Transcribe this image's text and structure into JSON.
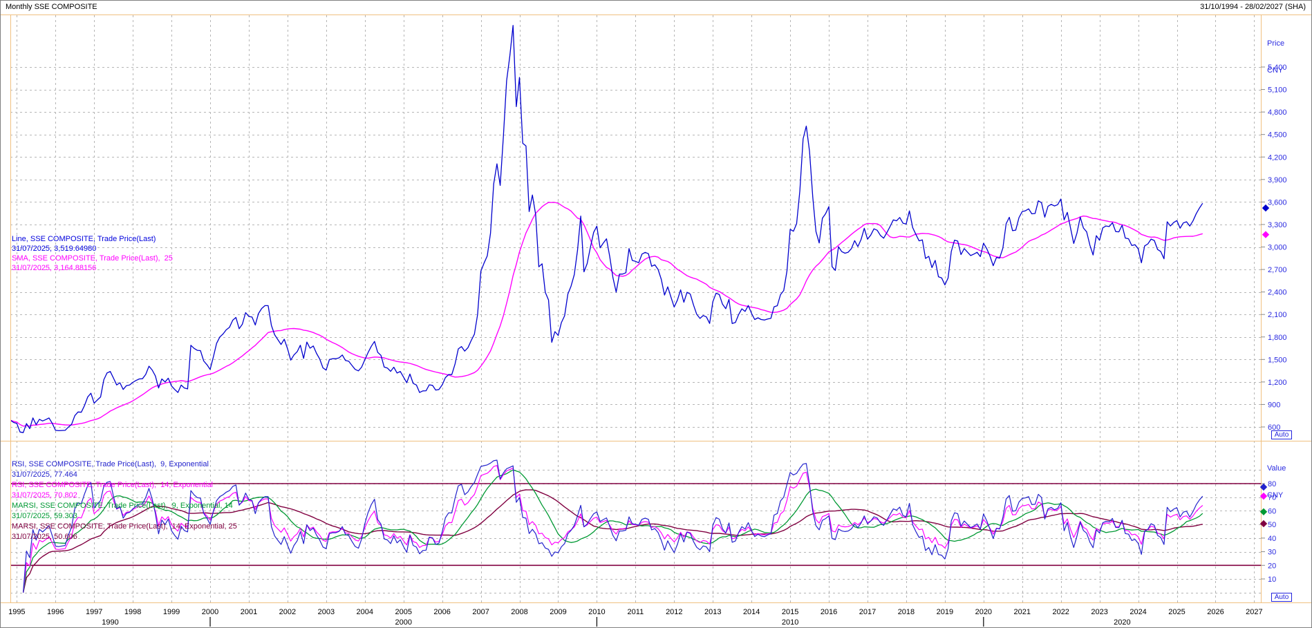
{
  "header": {
    "title": "Monthly SSE COMPOSITE",
    "date_range": "31/10/1994 - 28/02/2027 (SHA)"
  },
  "price_pane": {
    "axis_title_line1": "Price",
    "axis_title_line2": "CNY",
    "auto_label": "Auto",
    "ticks": [
      5400,
      5100,
      4800,
      4500,
      4200,
      3900,
      3600,
      3300,
      3000,
      2700,
      2400,
      2100,
      1800,
      1500,
      1200,
      900,
      600
    ],
    "legend": [
      {
        "label": "Line, SSE COMPOSITE, Trade Price(Last)",
        "value_line": "31/07/2025, 3,519.64980",
        "color": "#0000dd"
      },
      {
        "label": "SMA, SSE COMPOSITE, Trade Price(Last),  25",
        "value_line": "31/07/2025, 3,164.88156",
        "color": "#ff00ff"
      }
    ],
    "axis_markers": [
      {
        "value": 3519.6498,
        "color": "#0000cc"
      },
      {
        "value": 3164.88156,
        "color": "#ff00ff"
      }
    ]
  },
  "value_pane": {
    "axis_title_line1": "Value",
    "axis_title_line2": "CNY",
    "auto_label": "Auto",
    "ticks": [
      80,
      70,
      60,
      50,
      40,
      30,
      20,
      10
    ],
    "band_lines": [
      20,
      80
    ],
    "band_color": "#800040",
    "legend": [
      {
        "label": "RSI, SSE COMPOSITE, Trade Price(Last),  9, Exponential",
        "value_line": "31/07/2025, 77.464",
        "color": "#2222cc"
      },
      {
        "label": "RSI, SSE COMPOSITE, Trade Price(Last),  14, Exponential",
        "value_line": "31/07/2025, 70.802",
        "color": "#ff00ff"
      },
      {
        "label": "MARSI, SSE COMPOSITE, Trade Price(Last),  9, Exponential, 14",
        "value_line": "31/07/2025, 59.303",
        "color": "#009933"
      },
      {
        "label": "MARSI, SSE COMPOSITE, Trade Price(Last),  14, Exponential, 25",
        "value_line": "31/07/2025, 50.606",
        "color": "#800040"
      }
    ],
    "axis_markers": [
      {
        "value": 77.464,
        "color": "#2222cc"
      },
      {
        "value": 70.802,
        "color": "#ff00ff"
      },
      {
        "value": 59.303,
        "color": "#009933"
      },
      {
        "value": 50.606,
        "color": "#800040"
      }
    ]
  },
  "x_axis": {
    "years": [
      1995,
      1996,
      1997,
      1998,
      1999,
      2000,
      2001,
      2002,
      2003,
      2004,
      2005,
      2006,
      2007,
      2008,
      2009,
      2010,
      2011,
      2012,
      2013,
      2014,
      2015,
      2016,
      2017,
      2018,
      2019,
      2020,
      2021,
      2022,
      2023,
      2024,
      2025,
      2026,
      2027
    ],
    "decade_ticks": [
      2000,
      2010,
      2020
    ],
    "decade_labels": [
      "1990",
      "2000",
      "2010",
      "2020"
    ]
  },
  "chart_data": {
    "type": "line",
    "title": "Monthly SSE COMPOSITE",
    "x_range_dates": [
      "31/10/1994",
      "28/02/2027"
    ],
    "price_axis": {
      "label": "Price CNY",
      "ticks_min": 600,
      "ticks_max": 5400,
      "tick_step": 300
    },
    "value_axis": {
      "label": "Value CNY",
      "ticks_min": 10,
      "ticks_max": 80,
      "tick_step": 10,
      "reference_lines": [
        20,
        80
      ]
    },
    "price_monthly": {
      "t0": 1994.8333,
      "dt": 0.0833333,
      "comment_visible_series": "SSE COMPOSITE monthly Trade Price(Last), Oct-1994 to Aug-2025",
      "values": [
        690,
        660,
        647,
        533,
        524,
        645,
        578,
        721,
        630,
        702,
        680,
        699,
        720,
        649,
        555,
        550,
        553,
        555,
        598,
        636,
        750,
        800,
        796,
        885,
        1000,
        1050,
        917,
        960,
        1000,
        1230,
        1320,
        1340,
        1250,
        1160,
        1190,
        1100,
        1150,
        1160,
        1194,
        1220,
        1240,
        1243,
        1300,
        1410,
        1360,
        1280,
        1120,
        1240,
        1200,
        1250,
        1147,
        1100,
        1060,
        1158,
        1120,
        1108,
        1689,
        1648,
        1622,
        1618,
        1480,
        1430,
        1367,
        1535,
        1714,
        1800,
        1840,
        1895,
        1929,
        2023,
        2060,
        1910,
        1970,
        2125,
        2073,
        2066,
        1960,
        2112,
        2180,
        2218,
        2218,
        1955,
        1830,
        1765,
        1700,
        1770,
        1646,
        1491,
        1560,
        1603,
        1690,
        1515,
        1732,
        1650,
        1680,
        1581,
        1507,
        1388,
        1358,
        1499,
        1510,
        1510,
        1521,
        1560,
        1486,
        1476,
        1421,
        1367,
        1348,
        1397,
        1497,
        1590,
        1675,
        1741,
        1595,
        1555,
        1399,
        1386,
        1342,
        1397,
        1320,
        1340,
        1266,
        1191,
        1306,
        1181,
        1159,
        1060,
        1081,
        1083,
        1162,
        1155,
        1092,
        1099,
        1161,
        1258,
        1299,
        1298,
        1440,
        1641,
        1672,
        1612,
        1658,
        1752,
        1837,
        2099,
        2675,
        2786,
        2881,
        3184,
        3841,
        4109,
        3821,
        4471,
        5218,
        5552,
        5955,
        4872,
        5262,
        4383,
        4348,
        3473,
        3693,
        3433,
        2736,
        2776,
        2397,
        2294,
        1729,
        1871,
        1821,
        1991,
        2083,
        2373,
        2478,
        2632,
        2959,
        3412,
        2668,
        2779,
        2995,
        3195,
        3277,
        2989,
        3052,
        3109,
        2871,
        2592,
        2398,
        2638,
        2639,
        2656,
        2979,
        2820,
        2808,
        2790,
        2905,
        2928,
        2911,
        2743,
        2762,
        2701,
        2567,
        2359,
        2468,
        2333,
        2199,
        2292,
        2428,
        2263,
        2396,
        2372,
        2225,
        2103,
        2047,
        2086,
        2068,
        1980,
        2269,
        2385,
        2365,
        2237,
        2177,
        2301,
        1979,
        1994,
        2098,
        2175,
        2141,
        2220,
        2116,
        2033,
        2056,
        2033,
        2026,
        2039,
        2048,
        2202,
        2217,
        2364,
        2420,
        2683,
        3235,
        3210,
        3310,
        3748,
        4442,
        4612,
        4277,
        3664,
        3206,
        3053,
        3383,
        3445,
        3539,
        2738,
        2688,
        3004,
        2938,
        2917,
        2930,
        2979,
        3085,
        3005,
        3100,
        3250,
        3104,
        3159,
        3242,
        3223,
        3155,
        3117,
        3192,
        3273,
        3361,
        3349,
        3393,
        3317,
        3307,
        3481,
        3259,
        3169,
        3082,
        3095,
        2847,
        2876,
        2725,
        2821,
        2603,
        2588,
        2494,
        2585,
        2941,
        3091,
        3078,
        2899,
        2979,
        2933,
        2886,
        2905,
        2929,
        2872,
        3050,
        2977,
        2880,
        2750,
        2860,
        2852,
        2985,
        3310,
        3396,
        3218,
        3225,
        3392,
        3473,
        3483,
        3509,
        3442,
        3447,
        3615,
        3591,
        3397,
        3544,
        3568,
        3547,
        3564,
        3639,
        3361,
        3462,
        3252,
        3047,
        3186,
        3399,
        3253,
        3202,
        3024,
        2893,
        3151,
        3089,
        3255,
        3280,
        3273,
        3323,
        3205,
        3202,
        3291,
        3119,
        3110,
        3019,
        3030,
        2975,
        2789,
        3015,
        3041,
        3105,
        3087,
        2967,
        2939,
        2842,
        3336,
        3280,
        3326,
        3352,
        3251,
        3321,
        3336,
        3279,
        3347,
        3444,
        3520,
        3583
      ]
    },
    "series": [
      {
        "name": "Line, SSE COMPOSITE, Trade Price(Last)",
        "pane": "price",
        "type": "price",
        "color": "#0000cd",
        "last_value": 3519.6498
      },
      {
        "name": "SMA 25",
        "pane": "price",
        "type": "sma",
        "period": 25,
        "color": "#ff00ff",
        "last_value": 3164.88156
      },
      {
        "name": "RSI 9 Exponential",
        "pane": "value",
        "type": "rsi",
        "period": 9,
        "color": "#2222cc",
        "last_value": 77.464
      },
      {
        "name": "RSI 14 Exponential",
        "pane": "value",
        "type": "rsi",
        "period": 14,
        "color": "#ff00ff",
        "last_value": 70.802
      },
      {
        "name": "MARSI 9 Exponential 14",
        "pane": "value",
        "type": "marsi",
        "rsi_period": 9,
        "ma_period": 14,
        "color": "#009933",
        "last_value": 59.303
      },
      {
        "name": "MARSI 14 Exponential 25",
        "pane": "value",
        "type": "marsi",
        "rsi_period": 14,
        "ma_period": 25,
        "color": "#800040",
        "last_value": 50.606
      }
    ]
  },
  "colors": {
    "frame_orange": "#f0c080",
    "grid": "#b5b5b5",
    "axis_text_blue": "#2a2ae0",
    "band_maroon": "#800040"
  }
}
